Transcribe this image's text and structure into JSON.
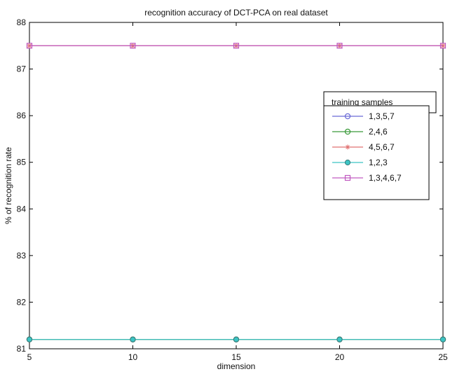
{
  "chart_data": {
    "type": "line",
    "title": "recognition accuracy of DCT-PCA on real dataset",
    "xlabel": "dimension",
    "ylabel": "% of recognition rate",
    "xlim": [
      5,
      25
    ],
    "ylim": [
      81,
      88
    ],
    "xticks": [
      5,
      10,
      15,
      20,
      25
    ],
    "yticks": [
      81,
      82,
      83,
      84,
      85,
      86,
      87,
      88
    ],
    "x": [
      5,
      10,
      15,
      20,
      25
    ],
    "grid": false,
    "legend_title": "training samples",
    "legend_position": "right",
    "series": [
      {
        "name": "1,3,5,7",
        "values": [
          81.2,
          81.2,
          81.2,
          81.2,
          81.2
        ],
        "color": "#6b6bd6",
        "marker": "circle"
      },
      {
        "name": "2,4,6",
        "values": [
          81.2,
          81.2,
          81.2,
          81.2,
          81.2
        ],
        "color": "#3a9a3a",
        "marker": "circle"
      },
      {
        "name": "4,5,6,7",
        "values": [
          87.5,
          87.5,
          87.5,
          87.5,
          87.5
        ],
        "color": "#e07070",
        "marker": "star"
      },
      {
        "name": "1,2,3",
        "values": [
          81.2,
          81.2,
          81.2,
          81.2,
          81.2
        ],
        "color": "#3cc4c4",
        "marker": "filled-circle"
      },
      {
        "name": "1,3,4,6,7",
        "values": [
          87.5,
          87.5,
          87.5,
          87.5,
          87.5
        ],
        "color": "#c05ac0",
        "marker": "square"
      }
    ]
  }
}
